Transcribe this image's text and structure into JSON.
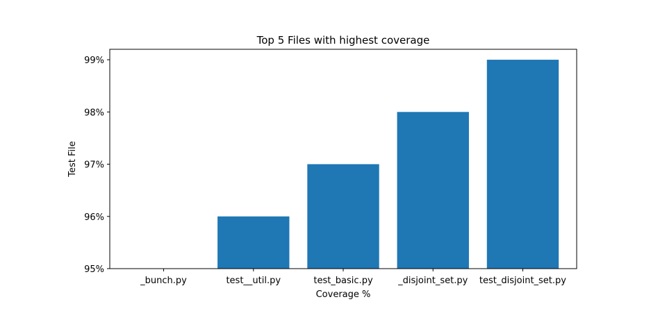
{
  "chart_data": {
    "type": "bar",
    "title": "Top 5 Files with highest coverage",
    "xlabel": "Coverage %",
    "ylabel": "Test File",
    "categories": [
      "_bunch.py",
      "test__util.py",
      "test_basic.py",
      "_disjoint_set.py",
      "test_disjoint_set.py"
    ],
    "values": [
      95,
      96,
      97,
      98,
      99
    ],
    "ylim": [
      95,
      99.2
    ],
    "yticks": [
      95,
      96,
      97,
      98,
      99
    ],
    "ytick_labels": [
      "95%",
      "96%",
      "97%",
      "98%",
      "99%"
    ],
    "grid": false,
    "legend": "none",
    "bar_color": "#1f77b4"
  }
}
